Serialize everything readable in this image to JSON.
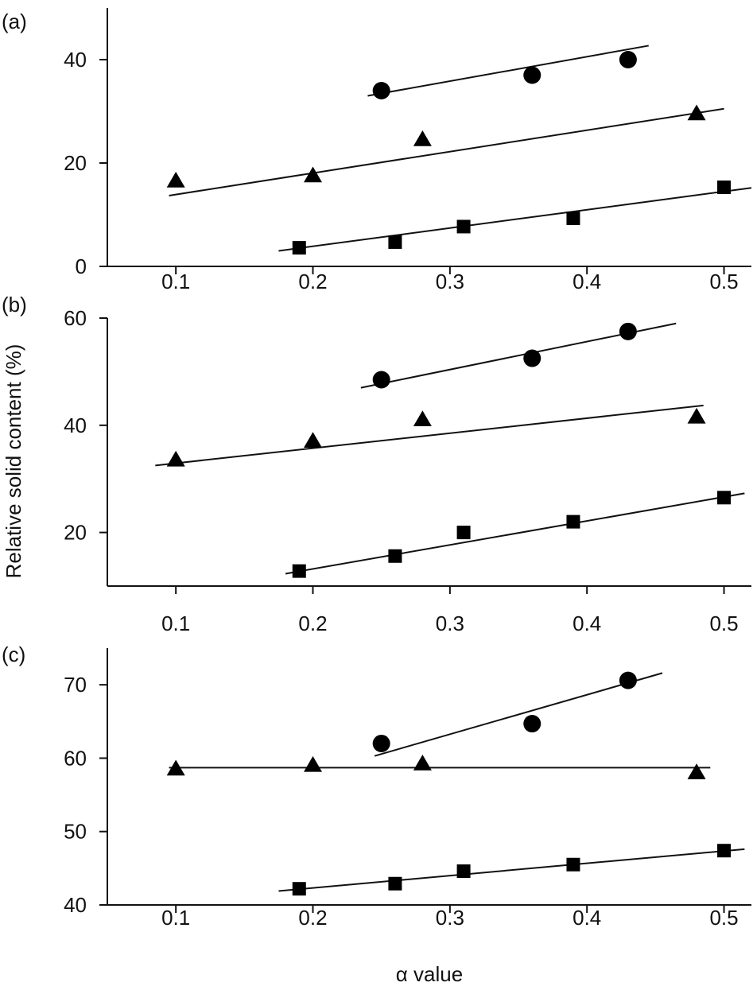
{
  "figure": {
    "ylabel": "Relative solid content (%)",
    "xlabel": "α value"
  },
  "chart_data": [
    {
      "type": "scatter",
      "panel_label": "(a)",
      "xlim": [
        0.05,
        0.52
      ],
      "ylim": [
        0,
        50
      ],
      "x_ticks": [
        0.1,
        0.2,
        0.3,
        0.4,
        0.5
      ],
      "x_tick_labels": [
        "0.1",
        "0.2",
        "0.3",
        "0.4",
        "0.5"
      ],
      "y_ticks": [
        0,
        20,
        40
      ],
      "y_tick_labels": [
        "0",
        "20",
        "40"
      ],
      "grid": false,
      "series": [
        {
          "marker": "circle",
          "x": [
            0.25,
            0.36,
            0.43
          ],
          "y": [
            34,
            37,
            40
          ],
          "fit": {
            "x": [
              0.24,
              0.445
            ],
            "y": [
              33,
              42.7
            ]
          }
        },
        {
          "marker": "triangle",
          "x": [
            0.1,
            0.2,
            0.28,
            0.48
          ],
          "y": [
            16.5,
            17.5,
            24.5,
            29.5
          ],
          "fit": {
            "x": [
              0.095,
              0.5
            ],
            "y": [
              13.7,
              30.5
            ]
          }
        },
        {
          "marker": "square",
          "x": [
            0.19,
            0.26,
            0.31,
            0.39,
            0.5
          ],
          "y": [
            3.6,
            4.7,
            7.7,
            9.3,
            15.3
          ],
          "fit": {
            "x": [
              0.175,
              0.52
            ],
            "y": [
              3.0,
              15.2
            ]
          }
        }
      ]
    },
    {
      "type": "scatter",
      "panel_label": "(b)",
      "xlim": [
        0.05,
        0.52
      ],
      "ylim": [
        10,
        60
      ],
      "x_ticks": [
        0.1,
        0.2,
        0.3,
        0.4,
        0.5
      ],
      "x_tick_labels": [
        "0.1",
        "0.2",
        "0.3",
        "0.4",
        "0.5"
      ],
      "y_ticks": [
        20,
        40,
        60
      ],
      "y_tick_labels": [
        "20",
        "40",
        "60"
      ],
      "grid": false,
      "series": [
        {
          "marker": "circle",
          "x": [
            0.25,
            0.36,
            0.43
          ],
          "y": [
            48.5,
            52.5,
            57.5
          ],
          "fit": {
            "x": [
              0.235,
              0.465
            ],
            "y": [
              47.0,
              59.0
            ]
          }
        },
        {
          "marker": "triangle",
          "x": [
            0.1,
            0.2,
            0.28,
            0.48
          ],
          "y": [
            33.5,
            37.0,
            41.0,
            41.5
          ],
          "fit": {
            "x": [
              0.085,
              0.485
            ],
            "y": [
              32.5,
              43.7
            ]
          }
        },
        {
          "marker": "square",
          "x": [
            0.19,
            0.26,
            0.31,
            0.39,
            0.5
          ],
          "y": [
            12.8,
            15.6,
            20.0,
            22.0,
            26.5
          ],
          "fit": {
            "x": [
              0.18,
              0.515
            ],
            "y": [
              12.3,
              27.3
            ]
          }
        }
      ]
    },
    {
      "type": "scatter",
      "panel_label": "(c)",
      "xlim": [
        0.05,
        0.52
      ],
      "ylim": [
        40,
        75
      ],
      "x_ticks": [
        0.1,
        0.2,
        0.3,
        0.4,
        0.5
      ],
      "x_tick_labels": [
        "0.1",
        "0.2",
        "0.3",
        "0.4",
        "0.5"
      ],
      "y_ticks": [
        40,
        50,
        60,
        70
      ],
      "y_tick_labels": [
        "40",
        "50",
        "60",
        "70"
      ],
      "grid": false,
      "series": [
        {
          "marker": "circle",
          "x": [
            0.25,
            0.36,
            0.43
          ],
          "y": [
            62.0,
            64.7,
            70.6
          ],
          "fit": {
            "x": [
              0.245,
              0.455
            ],
            "y": [
              60.3,
              71.6
            ]
          }
        },
        {
          "marker": "triangle",
          "x": [
            0.1,
            0.2,
            0.28,
            0.48
          ],
          "y": [
            58.5,
            59.0,
            59.2,
            58.0
          ],
          "fit": {
            "x": [
              0.095,
              0.49
            ],
            "y": [
              58.7,
              58.7
            ]
          }
        },
        {
          "marker": "square",
          "x": [
            0.19,
            0.26,
            0.31,
            0.39,
            0.5
          ],
          "y": [
            42.2,
            42.9,
            44.6,
            45.5,
            47.4
          ],
          "fit": {
            "x": [
              0.175,
              0.515
            ],
            "y": [
              41.9,
              47.6
            ]
          }
        }
      ]
    }
  ]
}
